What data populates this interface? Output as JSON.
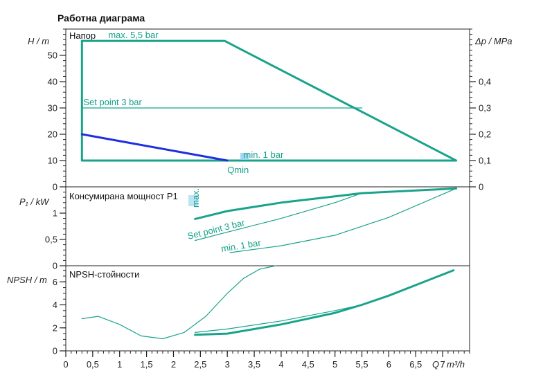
{
  "title": "Работна диаграма",
  "colors": {
    "teal": "#18a38a",
    "blue": "#1f2fe0",
    "axis": "#222222",
    "lightblue": "#8fd0f0"
  },
  "chart_data": [
    {
      "type": "line",
      "panel": "Напор",
      "ylabel_left": "H / m",
      "ylabel_right": "Δp / MPa",
      "ylim": [
        0,
        60
      ],
      "y_ticks": [
        "0",
        "10",
        "20",
        "30",
        "40",
        "50"
      ],
      "right_ylim": [
        0,
        0.6
      ],
      "right_y_ticks": [
        "0",
        "0,1",
        "0,2",
        "0,3",
        "0,4"
      ],
      "annotations": {
        "max": "max. 5,5 bar",
        "set": "Set point 3 bar",
        "min": "min. 1 bar",
        "qmin": "Qmin"
      },
      "series": [
        {
          "name": "max. 5,5 bar",
          "color": "teal",
          "width": 3,
          "x": [
            0.3,
            0.3,
            2.95,
            7.25,
            0.3
          ],
          "y": [
            10,
            55.5,
            55.5,
            10,
            10
          ]
        },
        {
          "name": "Set point 3 bar",
          "color": "teal",
          "width": 1.2,
          "x": [
            0.3,
            5.5
          ],
          "y": [
            30,
            30
          ]
        },
        {
          "name": "min. 1 bar",
          "color": "blue",
          "width": 3,
          "x": [
            0.3,
            3.0
          ],
          "y": [
            20,
            10
          ]
        }
      ]
    },
    {
      "type": "line",
      "panel": "Консумирана мощност P1",
      "ylabel_left": "P₁ / kW",
      "ylim": [
        0,
        1.5
      ],
      "y_ticks": [
        "0",
        "0,5",
        "1"
      ],
      "annotations": {
        "max": "max.",
        "set": "Set point 3 bar",
        "min": "min. 1 bar"
      },
      "series": [
        {
          "name": "max.",
          "color": "teal",
          "width": 3,
          "x": [
            2.4,
            3.0,
            4.0,
            5.0,
            5.5,
            6.5,
            7.25
          ],
          "y": [
            0.89,
            1.04,
            1.2,
            1.32,
            1.38,
            1.43,
            1.47
          ]
        },
        {
          "name": "Set point 3 bar",
          "color": "teal",
          "width": 1.2,
          "x": [
            2.4,
            3.0,
            4.0,
            5.0,
            5.5
          ],
          "y": [
            0.48,
            0.64,
            0.9,
            1.2,
            1.38
          ]
        },
        {
          "name": "min. 1 bar",
          "color": "teal",
          "width": 1.2,
          "x": [
            3.05,
            4.0,
            5.0,
            6.0,
            7.25
          ],
          "y": [
            0.25,
            0.38,
            0.58,
            0.92,
            1.47
          ]
        }
      ]
    },
    {
      "type": "line",
      "panel": "NPSH-стойности",
      "ylabel_left": "NPSH / m",
      "xlabel": "Q / m³/h",
      "xlim": [
        0,
        7.5
      ],
      "x_ticks": [
        "0",
        "0,5",
        "1",
        "1,5",
        "2",
        "2,5",
        "3",
        "3,5",
        "4",
        "4,5",
        "5",
        "5,5",
        "6",
        "6,5",
        "7"
      ],
      "ylim": [
        0,
        7.4
      ],
      "y_ticks": [
        "0",
        "2",
        "4",
        "6"
      ],
      "series": [
        {
          "name": "",
          "color": "teal",
          "width": 1.2,
          "x": [
            0.3,
            0.6,
            1.0,
            1.4,
            1.8,
            2.2,
            2.6,
            3.0,
            3.3,
            3.6,
            3.9
          ],
          "y": [
            2.8,
            3.0,
            2.3,
            1.3,
            1.05,
            1.6,
            3.0,
            5.0,
            6.3,
            7.1,
            7.4
          ]
        },
        {
          "name": "",
          "color": "teal",
          "width": 1.2,
          "x": [
            2.4,
            3.0,
            4.0,
            5.0,
            5.5
          ],
          "y": [
            1.6,
            1.9,
            2.6,
            3.5,
            4.0
          ]
        },
        {
          "name": "",
          "color": "teal",
          "width": 3,
          "x": [
            2.4,
            3.0,
            4.0,
            5.0,
            5.5,
            6.0,
            7.2
          ],
          "y": [
            1.4,
            1.5,
            2.3,
            3.3,
            4.0,
            4.8,
            7.0
          ]
        }
      ]
    }
  ]
}
